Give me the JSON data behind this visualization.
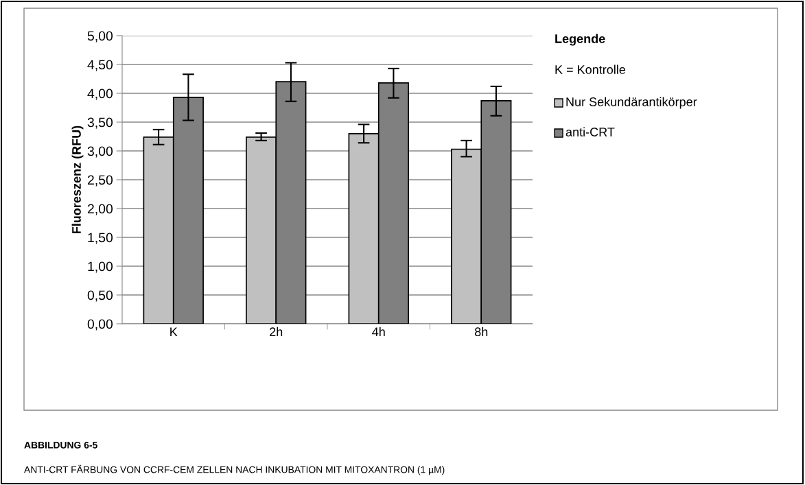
{
  "chart_data": {
    "type": "bar",
    "ylabel": "Fluoreszenz (RFU)",
    "legend_title": "Legende",
    "categories": [
      "K",
      "2h",
      "4h",
      "8h"
    ],
    "series": [
      {
        "name": "Nur Sekundärantikörper",
        "color": "#c0c0c0",
        "values": [
          3.24,
          3.24,
          3.3,
          3.03
        ],
        "errors": [
          [
            3.11,
            3.37
          ],
          [
            3.18,
            3.31
          ],
          [
            3.14,
            3.46
          ],
          [
            2.9,
            3.18
          ]
        ]
      },
      {
        "name": "anti-CRT",
        "color": "#808080",
        "values": [
          3.93,
          4.2,
          4.18,
          3.87
        ],
        "errors": [
          [
            3.53,
            4.33
          ],
          [
            3.86,
            4.53
          ],
          [
            3.92,
            4.43
          ],
          [
            3.61,
            4.12
          ]
        ]
      }
    ],
    "ylim": [
      0,
      5
    ],
    "yticks": [
      {
        "value": 0,
        "label": "0,00"
      },
      {
        "value": 0.5,
        "label": "0,50"
      },
      {
        "value": 1,
        "label": "1,00"
      },
      {
        "value": 1.5,
        "label": "1,50"
      },
      {
        "value": 2,
        "label": "2,00"
      },
      {
        "value": 2.5,
        "label": "2,50"
      },
      {
        "value": 3,
        "label": "3,00"
      },
      {
        "value": 3.5,
        "label": "3,50"
      },
      {
        "value": 4,
        "label": "4,00"
      },
      {
        "value": 4.5,
        "label": "4,50"
      },
      {
        "value": 5,
        "label": "5,00"
      }
    ],
    "grid": "y",
    "legend": "right",
    "annotations": [
      "K = Kontrolle",
      "ABBILDUNG 6-5",
      "ANTI-CRT FÄRBUNG VON CCRF-CEM ZELLEN NACH INKUBATION MIT MITOXANTRON (1 µM)"
    ]
  }
}
